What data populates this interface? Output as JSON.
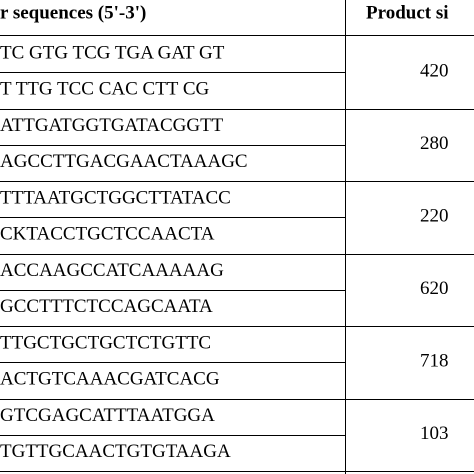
{
  "table": {
    "columns": [
      "r sequences (5'-3')",
      "Product si"
    ],
    "rows": [
      {
        "sequences": [
          "TC GTG TCG TGA GAT GT",
          "T TTG TCC CAC CTT CG"
        ],
        "product": "420"
      },
      {
        "sequences": [
          "ATTGATGGTGATACGGTT",
          "AGCCTTGACGAACTAAAGC"
        ],
        "product": "280"
      },
      {
        "sequences": [
          "TTTAATGCTGGCTTATACC",
          "CKTACCTGCTCCAACTA"
        ],
        "product": "220"
      },
      {
        "sequences": [
          "ACCAAGCCATCAAAAAG",
          "GCCTTTCTCCAGCAATA"
        ],
        "product": "620"
      },
      {
        "sequences": [
          "TTGCTGCTGCTCTGTTC",
          "ACTGTCAAACGATCACG"
        ],
        "product": "718"
      },
      {
        "sequences": [
          "GTCGAGCATTTAATGGA",
          "TGTTGCAACTGTGTAAGA"
        ],
        "product": "103"
      }
    ]
  }
}
